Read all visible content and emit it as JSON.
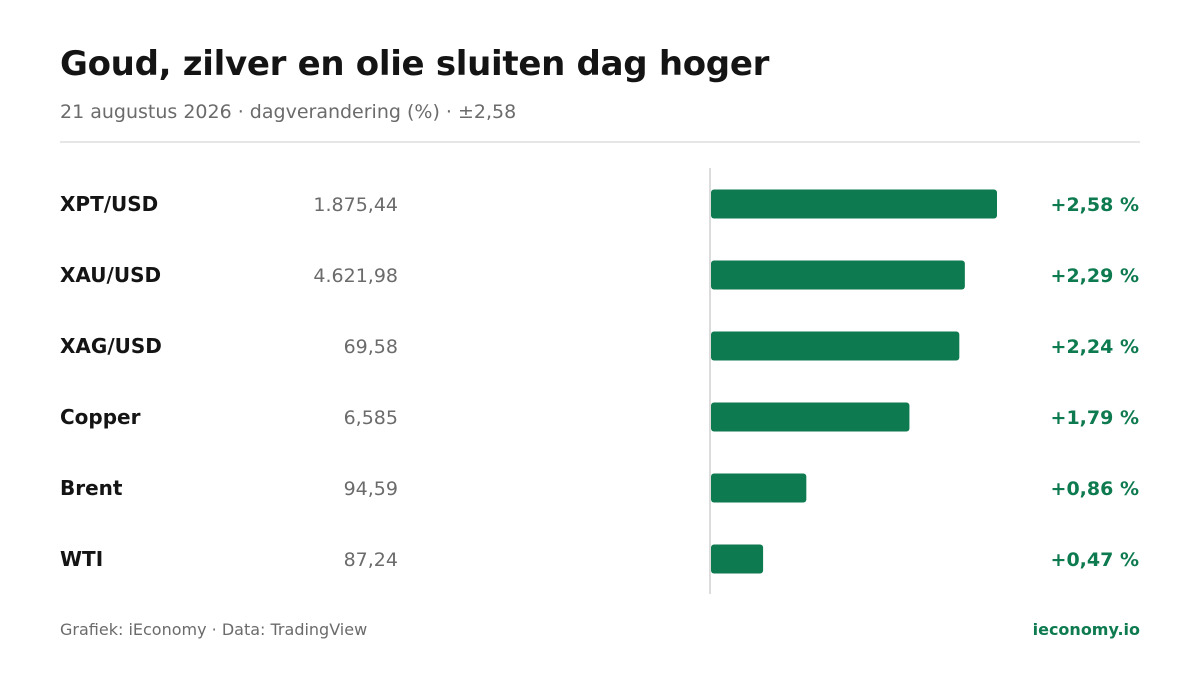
{
  "title": "Goud, zilver en olie sluiten dag hoger",
  "subtitle": "21 augustus 2026 · dagverandering (%) · ±2,58",
  "footer": {
    "source": "Grafiek: iEconomy · Data: TradingView",
    "brand": "ieconomy.io"
  },
  "colors": {
    "positive": "#0e7a4f",
    "axis": "#dcdcdc",
    "brand": "#0e7a4f"
  },
  "chart_data": {
    "type": "bar",
    "orientation": "horizontal",
    "xlim": [
      -2.58,
      2.58
    ],
    "grid": false,
    "legend": "none",
    "categories": [
      "XPT/USD",
      "XAU/USD",
      "XAG/USD",
      "Copper",
      "Brent",
      "WTI"
    ],
    "prices": [
      "1.875,44",
      "4.621,98",
      "69,58",
      "6,585",
      "94,59",
      "87,24"
    ],
    "values": [
      2.58,
      2.29,
      2.24,
      1.79,
      0.86,
      0.47
    ],
    "value_labels": [
      "+2,58 %",
      "+2,29 %",
      "+2,24 %",
      "+1,79 %",
      "+0,86 %",
      "+0,47 %"
    ]
  }
}
